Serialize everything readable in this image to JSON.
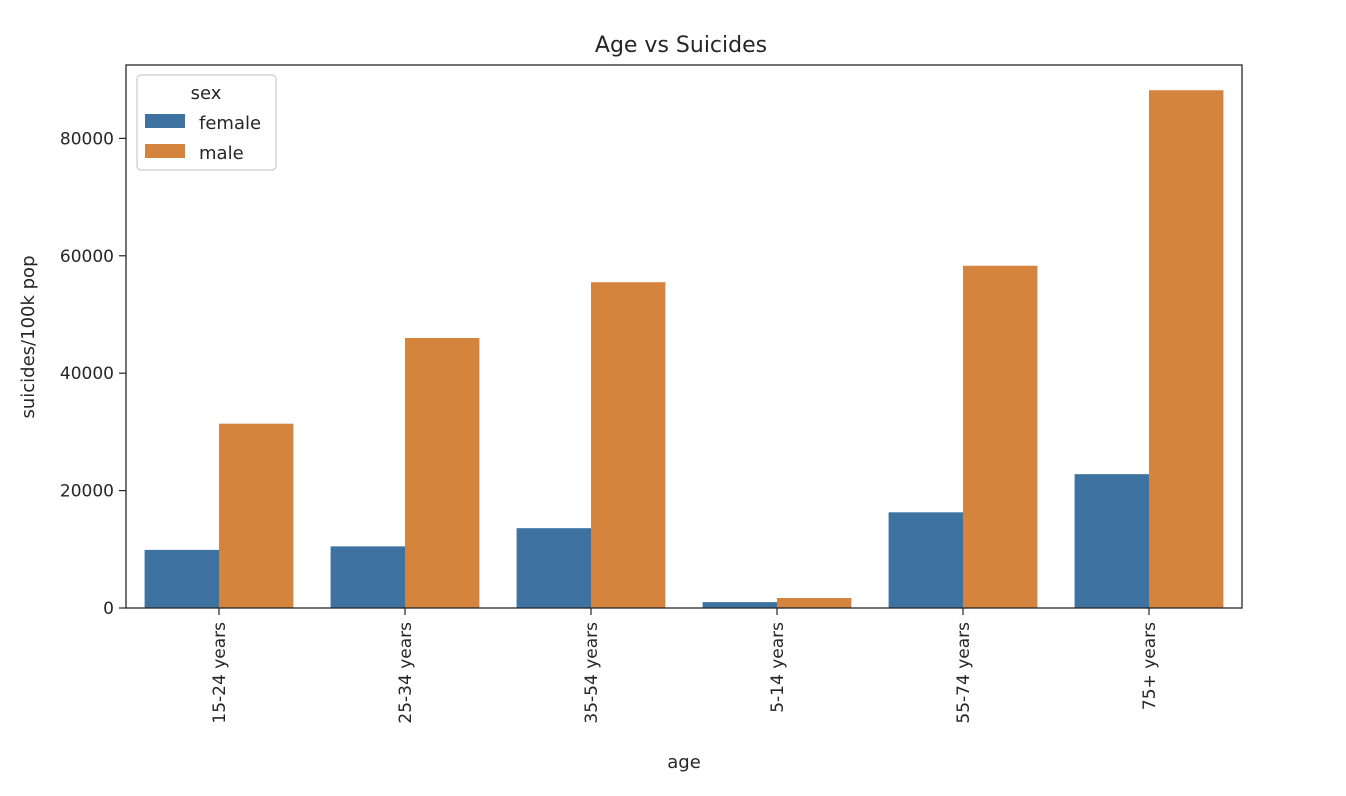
{
  "chart_data": {
    "type": "bar",
    "title": "Age vs Suicides",
    "xlabel": "age",
    "ylabel": "suicides/100k pop",
    "categories": [
      "15-24 years",
      "25-34 years",
      "35-54 years",
      "5-14 years",
      "55-74 years",
      "75+ years"
    ],
    "series": [
      {
        "name": "female",
        "color": "#3e73a1",
        "values": [
          9900,
          10500,
          13600,
          1000,
          16300,
          22800
        ]
      },
      {
        "name": "male",
        "color": "#d5843e",
        "values": [
          31400,
          46000,
          55500,
          1700,
          58300,
          88200
        ]
      }
    ],
    "ylim": [
      0,
      92500
    ],
    "yticks": [
      0,
      20000,
      40000,
      60000,
      80000
    ],
    "legend": {
      "title": "sex",
      "position": "top-left"
    },
    "grid": false
  }
}
